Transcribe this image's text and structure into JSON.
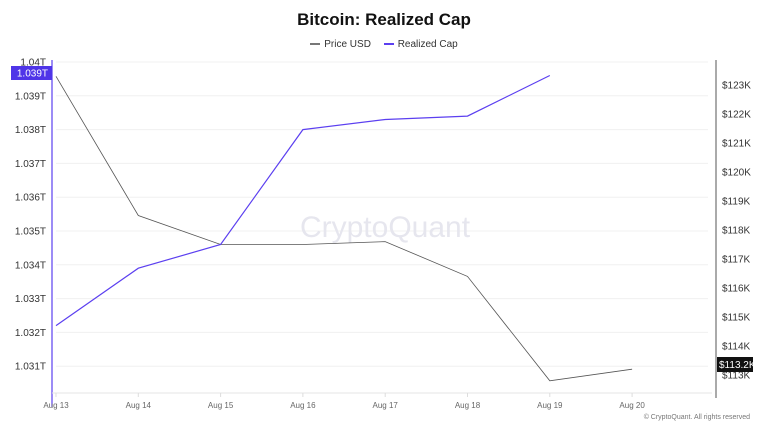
{
  "header": {
    "title": "Bitcoin: Realized Cap"
  },
  "legend": [
    {
      "label": "Price USD",
      "color": "#555555"
    },
    {
      "label": "Realized Cap",
      "color": "#5b3ff0"
    }
  ],
  "watermark": "CryptoQuant",
  "footer": "© CryptoQuant. All rights reserved",
  "colors": {
    "realized_cap": "#5b3ff0",
    "price": "#555555",
    "left_badge_bg": "#4f35e8",
    "right_badge_bg": "#111111",
    "grid": "#f0f0f0"
  },
  "badges": {
    "left": "1.039T",
    "right": "$113.2K"
  },
  "chart_data": {
    "type": "line",
    "title": "Bitcoin: Realized Cap",
    "categories": [
      "Aug 13",
      "Aug 14",
      "Aug 15",
      "Aug 16",
      "Aug 17",
      "Aug 18",
      "Aug 19",
      "Aug 20"
    ],
    "x": [
      "Aug 13",
      "Aug 14",
      "Aug 15",
      "Aug 16",
      "Aug 17",
      "Aug 18",
      "Aug 19",
      "Aug 20"
    ],
    "series": [
      {
        "name": "Realized Cap",
        "axis": "left",
        "unit": "T USD",
        "values": [
          1.0322,
          1.0339,
          1.0346,
          1.038,
          1.0383,
          1.0384,
          1.0396,
          null
        ]
      },
      {
        "name": "Price USD",
        "axis": "right",
        "unit": "K USD",
        "values": [
          123.3,
          118.5,
          117.5,
          117.5,
          117.6,
          116.4,
          112.8,
          113.2
        ]
      }
    ],
    "left_axis": {
      "ticks": [
        "1.04T",
        "1.039T",
        "1.038T",
        "1.037T",
        "1.036T",
        "1.035T",
        "1.034T",
        "1.033T",
        "1.032T",
        "1.031T"
      ],
      "ylim": [
        1.0302,
        1.04
      ]
    },
    "right_axis": {
      "ticks": [
        "$123K",
        "$122K",
        "$121K",
        "$120K",
        "$119K",
        "$118K",
        "$117K",
        "$116K",
        "$115K",
        "$114K",
        "$113K"
      ],
      "ylim": [
        112.3,
        123.8
      ]
    },
    "xlabel": "",
    "ylabel_left": "Realized Cap",
    "ylabel_right": "Price USD",
    "grid": true,
    "legend_position": "top"
  }
}
